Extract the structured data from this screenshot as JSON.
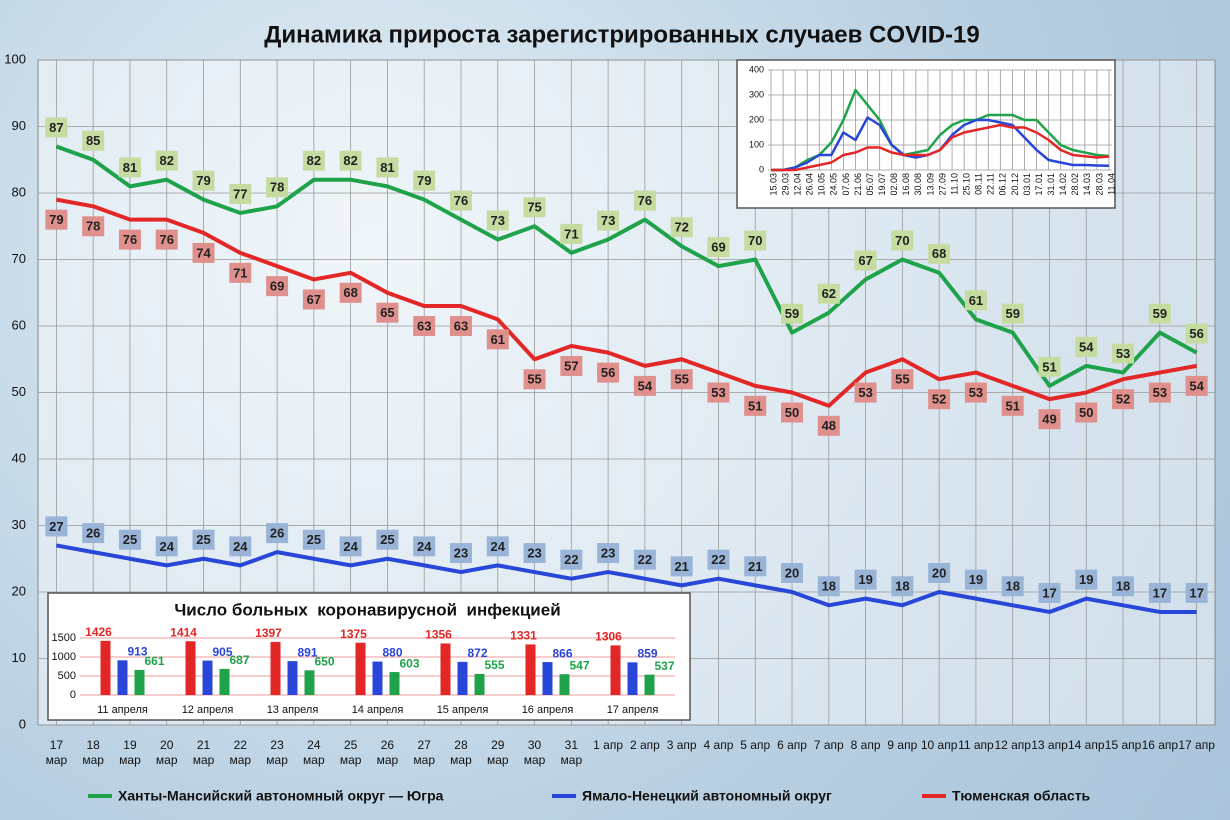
{
  "chart_data": [
    {
      "type": "line",
      "title": "Динамика прироста зарегистрированных случаев COVID-19",
      "categories": [
        "17 мар",
        "18 мар",
        "19 мар",
        "20 мар",
        "21 мар",
        "22 мар",
        "23 мар",
        "24 мар",
        "25 мар",
        "26 мар",
        "27 мар",
        "28 мар",
        "29 мар",
        "30 мар",
        "31 мар",
        "1 апр",
        "2 апр",
        "3 апр",
        "4 апр",
        "5 апр",
        "6 апр",
        "7 апр",
        "8 апр",
        "9 апр",
        "10 апр",
        "11 апр",
        "12 апр",
        "13 апр",
        "14 апр",
        "15 апр",
        "16 апр",
        "17 апр"
      ],
      "series": [
        {
          "name": "Ханты-Мансийский автономный округ — Югра",
          "color": "#1fa34a",
          "values": [
            87,
            85,
            81,
            82,
            79,
            77,
            78,
            82,
            82,
            81,
            79,
            76,
            73,
            75,
            71,
            73,
            76,
            72,
            69,
            70,
            59,
            62,
            67,
            70,
            68,
            61,
            59,
            51,
            54,
            53,
            59,
            56
          ]
        },
        {
          "name": "Ямало-Ненецкий автономный округ",
          "color": "#2846d8",
          "values": [
            27,
            26,
            25,
            24,
            25,
            24,
            26,
            25,
            24,
            25,
            24,
            23,
            24,
            23,
            22,
            23,
            22,
            21,
            22,
            21,
            20,
            18,
            19,
            18,
            20,
            19,
            18,
            17,
            19,
            18,
            17,
            17
          ]
        },
        {
          "name": "Тюменская область",
          "color": "#e32626",
          "values": [
            79,
            78,
            76,
            76,
            74,
            71,
            69,
            67,
            68,
            65,
            63,
            63,
            61,
            55,
            57,
            56,
            54,
            55,
            53,
            51,
            50,
            48,
            53,
            55,
            52,
            53,
            51,
            49,
            50,
            52,
            53,
            54
          ]
        }
      ],
      "ylim": [
        0,
        100
      ],
      "yticks": [
        0,
        10,
        20,
        30,
        40,
        50,
        60,
        70,
        80,
        90,
        100
      ],
      "grid": true,
      "data_labels": true
    },
    {
      "type": "line",
      "categories": [
        "15.03",
        "29.03",
        "12.04",
        "26.04",
        "10.05",
        "24.05",
        "07.06",
        "21.06",
        "05.07",
        "19.07",
        "02.08",
        "16.08",
        "30.08",
        "13.09",
        "27.09",
        "11.10",
        "25.10",
        "08.11",
        "22.11",
        "06.12",
        "20.12",
        "03.01",
        "17.01",
        "31.01",
        "14.02",
        "28.02",
        "14.03",
        "28.03",
        "11.04"
      ],
      "series": [
        {
          "color": "#1fa34a",
          "values": [
            0,
            0,
            10,
            40,
            60,
            110,
            200,
            320,
            260,
            200,
            100,
            60,
            70,
            80,
            140,
            180,
            200,
            200,
            220,
            220,
            220,
            200,
            200,
            150,
            100,
            80,
            70,
            60,
            56
          ]
        },
        {
          "color": "#2846d8",
          "values": [
            0,
            0,
            10,
            30,
            60,
            60,
            150,
            120,
            210,
            180,
            100,
            60,
            50,
            60,
            80,
            140,
            180,
            200,
            200,
            190,
            180,
            130,
            80,
            40,
            30,
            20,
            20,
            18,
            17
          ]
        },
        {
          "color": "#e32626",
          "values": [
            0,
            0,
            0,
            10,
            20,
            30,
            60,
            70,
            90,
            90,
            70,
            60,
            60,
            60,
            80,
            130,
            150,
            160,
            170,
            180,
            170,
            170,
            150,
            120,
            80,
            60,
            55,
            50,
            54
          ]
        }
      ],
      "ylim": [
        0,
        400
      ],
      "yticks": [
        0,
        100,
        200,
        300,
        400
      ],
      "grid": true,
      "data_labels": false
    },
    {
      "type": "bar",
      "title": "Число больных  коронавирусной  инфекцией",
      "categories": [
        "11 апреля",
        "12 апреля",
        "13 апреля",
        "14 апреля",
        "15 апреля",
        "16 апреля",
        "17 апреля"
      ],
      "series": [
        {
          "color": "#e32626",
          "values": [
            1426,
            1414,
            1397,
            1375,
            1356,
            1331,
            1306
          ]
        },
        {
          "color": "#2846d8",
          "values": [
            913,
            905,
            891,
            880,
            872,
            866,
            859
          ]
        },
        {
          "color": "#1fa34a",
          "values": [
            661,
            687,
            650,
            603,
            555,
            547,
            537
          ]
        }
      ],
      "ylim": [
        0,
        1500
      ],
      "yticks": [
        0,
        500,
        1000,
        1500
      ],
      "grid": true,
      "data_labels": true
    }
  ]
}
